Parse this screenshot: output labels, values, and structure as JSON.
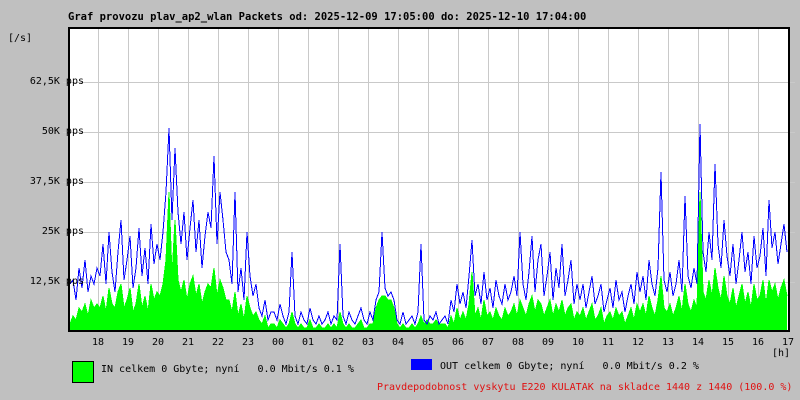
{
  "title": "Graf provozu plav_ap2_wlan Packets od: 2025-12-09 17:05:00 do: 2025-12-10 17:04:00",
  "y_axis": {
    "unit": "[/s]",
    "tick_labels": [
      "62,5K pps",
      "50K pps",
      "37,5K pps",
      "25K pps",
      "12,5K pps"
    ],
    "tick_values_kpps": [
      62.5,
      50,
      37.5,
      25,
      12.5
    ]
  },
  "x_axis": {
    "unit": "[h]",
    "hour_labels": [
      "18",
      "19",
      "20",
      "21",
      "22",
      "23",
      "00",
      "01",
      "02",
      "03",
      "04",
      "05",
      "06",
      "07",
      "08",
      "09",
      "10",
      "11",
      "12",
      "13",
      "14",
      "15",
      "16",
      "17"
    ]
  },
  "legend": {
    "in_label": "IN celkem 0 Gbyte; nyní   0.0 Mbit/s 0.1 %",
    "out_label": "OUT celkem 0 Gbyte; nyní   0.0 Mbit/s 0.2 %",
    "in_color": "#00ff00",
    "out_color": "#0000ff"
  },
  "footer_warning": "Pravdepodobnost vyskytu E220 KULATAK na skladce 1440 z 1440 (100.0 %)",
  "colors": {
    "background": "#c0c0c0",
    "plot_background": "#ffffff",
    "grid": "#c9c9c9",
    "border": "#000000",
    "text": "#000000",
    "warning_text": "#e01010"
  },
  "chart_data": {
    "type": "line",
    "title": "Graf provozu plav_ap2_wlan Packets",
    "x_start": "2025-12-09 17:05:00",
    "x_end": "2025-12-10 17:04:00",
    "x_unit": "hours",
    "sample_minutes": 6,
    "ylabel": "packets per second (pps)",
    "ylim_kpps": [
      0,
      75.75
    ],
    "grid": true,
    "legend_position": "bottom",
    "series": [
      {
        "name": "IN",
        "color": "#00ff00",
        "style": "filled-area",
        "values_kpps": [
          2,
          4,
          3,
          6,
          5,
          7,
          4,
          8,
          6,
          7,
          6,
          9,
          5,
          11,
          7,
          6,
          10,
          12,
          6,
          8,
          11,
          5,
          7,
          12,
          6,
          9,
          5,
          12,
          8,
          10,
          9,
          12,
          18,
          35,
          14,
          28,
          13,
          10,
          13,
          8,
          12,
          14,
          9,
          12,
          7,
          10,
          12,
          11,
          16,
          9,
          13,
          11,
          8,
          8,
          5,
          10,
          4,
          7,
          3,
          9,
          6,
          4,
          5,
          3,
          2,
          4,
          1,
          2,
          2,
          1,
          3,
          2,
          1,
          2,
          5,
          2,
          1,
          2,
          1,
          1,
          3,
          1,
          1,
          2,
          1,
          1,
          2,
          1,
          2,
          1,
          5,
          2,
          1,
          2,
          1,
          1,
          2,
          3,
          1,
          1,
          2,
          2,
          6,
          8,
          9,
          9,
          8,
          8,
          6,
          2,
          1,
          2,
          1,
          1,
          2,
          1,
          2,
          4,
          2,
          3,
          2,
          2,
          3,
          2,
          2,
          2,
          1,
          4,
          2,
          6,
          3,
          5,
          3,
          7,
          15,
          4,
          6,
          3,
          8,
          4,
          5,
          3,
          6,
          4,
          3,
          6,
          4,
          5,
          7,
          4,
          8,
          6,
          4,
          7,
          9,
          5,
          8,
          7,
          4,
          6,
          8,
          4,
          7,
          5,
          8,
          4,
          6,
          7,
          3,
          5,
          4,
          6,
          3,
          5,
          7,
          3,
          4,
          6,
          2,
          4,
          5,
          3,
          6,
          4,
          5,
          2,
          4,
          6,
          3,
          7,
          5,
          7,
          4,
          9,
          6,
          4,
          8,
          14,
          6,
          5,
          7,
          4,
          6,
          9,
          5,
          12,
          7,
          5,
          8,
          6,
          35,
          10,
          8,
          13,
          9,
          16,
          11,
          8,
          14,
          9,
          7,
          11,
          6,
          9,
          12,
          7,
          10,
          6,
          12,
          8,
          9,
          13,
          7,
          13,
          10,
          12,
          8,
          11,
          13,
          9
        ]
      },
      {
        "name": "OUT",
        "color": "#0000ff",
        "style": "line",
        "values_kpps": [
          12,
          13,
          8,
          16,
          11,
          18,
          10,
          14,
          12,
          16,
          14,
          22,
          12,
          25,
          15,
          10,
          20,
          28,
          13,
          18,
          24,
          11,
          16,
          26,
          14,
          21,
          12,
          27,
          17,
          22,
          18,
          25,
          35,
          51,
          28,
          46,
          30,
          22,
          30,
          18,
          26,
          33,
          20,
          28,
          16,
          24,
          30,
          26,
          44,
          22,
          35,
          28,
          20,
          18,
          12,
          35,
          10,
          16,
          8,
          25,
          14,
          9,
          12,
          6,
          4,
          8,
          3,
          5,
          5,
          3,
          7,
          4,
          2,
          5,
          20,
          4,
          2,
          5,
          3,
          2,
          6,
          3,
          2,
          4,
          2,
          3,
          5,
          2,
          4,
          3,
          22,
          4,
          2,
          5,
          3,
          2,
          4,
          6,
          3,
          2,
          5,
          3,
          8,
          10,
          25,
          11,
          9,
          10,
          8,
          3,
          2,
          5,
          2,
          3,
          4,
          2,
          5,
          22,
          3,
          2,
          4,
          3,
          5,
          2,
          3,
          4,
          2,
          8,
          5,
          12,
          7,
          10,
          6,
          14,
          23,
          9,
          12,
          7,
          15,
          8,
          11,
          6,
          13,
          9,
          7,
          12,
          8,
          10,
          14,
          9,
          25,
          12,
          8,
          15,
          24,
          10,
          18,
          22,
          9,
          14,
          20,
          8,
          16,
          11,
          22,
          9,
          13,
          18,
          7,
          12,
          8,
          12,
          6,
          10,
          14,
          7,
          9,
          12,
          5,
          8,
          11,
          6,
          13,
          8,
          10,
          5,
          9,
          12,
          7,
          15,
          10,
          14,
          8,
          18,
          12,
          9,
          16,
          40,
          13,
          10,
          15,
          9,
          12,
          18,
          10,
          34,
          14,
          11,
          16,
          12,
          52,
          20,
          15,
          25,
          18,
          42,
          22,
          16,
          28,
          19,
          14,
          22,
          12,
          18,
          25,
          15,
          20,
          12,
          24,
          16,
          19,
          26,
          14,
          33,
          21,
          25,
          17,
          22,
          27,
          20
        ]
      }
    ]
  }
}
